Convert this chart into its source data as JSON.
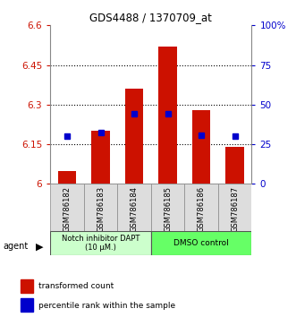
{
  "title": "GDS4488 / 1370709_at",
  "samples": [
    "GSM786182",
    "GSM786183",
    "GSM786184",
    "GSM786185",
    "GSM786186",
    "GSM786187"
  ],
  "bar_tops": [
    6.05,
    6.2,
    6.36,
    6.52,
    6.28,
    6.14
  ],
  "bar_bottom": 6.0,
  "blue_values": [
    6.18,
    6.195,
    6.265,
    6.265,
    6.185,
    6.18
  ],
  "ylim": [
    6.0,
    6.6
  ],
  "right_ylim": [
    0,
    100
  ],
  "yticks_left": [
    6.0,
    6.15,
    6.3,
    6.45,
    6.6
  ],
  "yticks_right": [
    0,
    25,
    50,
    75,
    100
  ],
  "ytick_labels_left": [
    "6",
    "6.15",
    "6.3",
    "6.45",
    "6.6"
  ],
  "ytick_labels_right": [
    "0",
    "25",
    "50",
    "75",
    "100%"
  ],
  "bar_color": "#cc1100",
  "blue_color": "#0000cc",
  "bg_color": "#ffffff",
  "agent_label": "agent",
  "group1_label": "Notch inhibitor DAPT\n(10 μM.)",
  "group2_label": "DMSO control",
  "group1_color": "#ccffcc",
  "group2_color": "#66ff66",
  "group1_indices": [
    0,
    1,
    2
  ],
  "group2_indices": [
    3,
    4,
    5
  ],
  "legend_red": "transformed count",
  "legend_blue": "percentile rank within the sample",
  "grid_color": "#000000",
  "spine_color": "#888888"
}
